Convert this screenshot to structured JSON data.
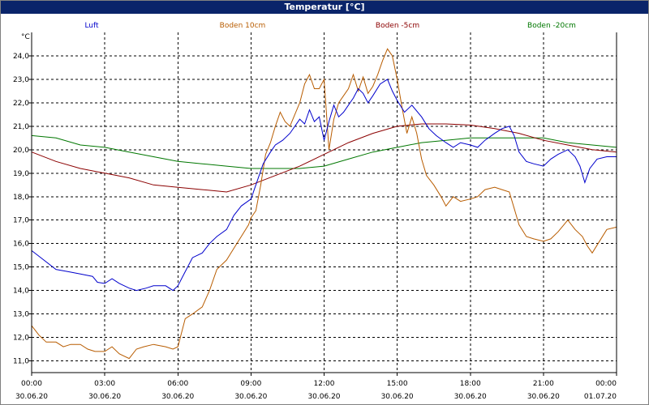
{
  "window": {
    "title": "Temperatur [°C]"
  },
  "chart_data": {
    "type": "line",
    "title": "Temperatur [°C]",
    "ylabel": "°C",
    "xlim": [
      "2020-06-30 00:00",
      "2020-07-01 00:00"
    ],
    "ylim": [
      10.5,
      25.0
    ],
    "grid": true,
    "legend_placement": "top",
    "y_ticks": [
      "11,0",
      "12,0",
      "13,0",
      "14,0",
      "15,0",
      "16,0",
      "17,0",
      "18,0",
      "19,0",
      "20,0",
      "21,0",
      "22,0",
      "23,0",
      "24,0"
    ],
    "x_ticks": [
      {
        "time": "00:00",
        "date": "30.06.20",
        "x": 0
      },
      {
        "time": "03:00",
        "date": "30.06.20",
        "x": 3
      },
      {
        "time": "06:00",
        "date": "30.06.20",
        "x": 6
      },
      {
        "time": "09:00",
        "date": "30.06.20",
        "x": 9
      },
      {
        "time": "12:00",
        "date": "30.06.20",
        "x": 12
      },
      {
        "time": "15:00",
        "date": "30.06.20",
        "x": 15
      },
      {
        "time": "18:00",
        "date": "30.06.20",
        "x": 18
      },
      {
        "time": "21:00",
        "date": "30.06.20",
        "x": 21
      },
      {
        "time": "00:00",
        "date": "01.07.20",
        "x": 24
      }
    ],
    "x_unit": "hours since 30.06.20 00:00",
    "series": [
      {
        "name": "Luft",
        "color": "#0000cc",
        "points": [
          [
            0,
            15.7
          ],
          [
            0.5,
            15.3
          ],
          [
            1,
            14.9
          ],
          [
            1.5,
            14.8
          ],
          [
            2,
            14.7
          ],
          [
            2.5,
            14.6
          ],
          [
            2.7,
            14.35
          ],
          [
            3,
            14.3
          ],
          [
            3.3,
            14.5
          ],
          [
            3.6,
            14.3
          ],
          [
            4,
            14.1
          ],
          [
            4.3,
            14.0
          ],
          [
            4.7,
            14.1
          ],
          [
            5,
            14.2
          ],
          [
            5.5,
            14.2
          ],
          [
            5.8,
            14.0
          ],
          [
            6,
            14.2
          ],
          [
            6.3,
            14.8
          ],
          [
            6.6,
            15.4
          ],
          [
            7,
            15.6
          ],
          [
            7.3,
            16.0
          ],
          [
            7.6,
            16.3
          ],
          [
            8,
            16.6
          ],
          [
            8.3,
            17.2
          ],
          [
            8.6,
            17.6
          ],
          [
            9,
            17.9
          ],
          [
            9.3,
            18.8
          ],
          [
            9.5,
            19.4
          ],
          [
            9.8,
            19.9
          ],
          [
            10,
            20.2
          ],
          [
            10.3,
            20.4
          ],
          [
            10.6,
            20.7
          ],
          [
            11,
            21.3
          ],
          [
            11.2,
            21.1
          ],
          [
            11.4,
            21.7
          ],
          [
            11.6,
            21.2
          ],
          [
            11.8,
            21.4
          ],
          [
            12,
            20.4
          ],
          [
            12.2,
            21.2
          ],
          [
            12.4,
            21.9
          ],
          [
            12.6,
            21.4
          ],
          [
            12.8,
            21.6
          ],
          [
            13,
            21.9
          ],
          [
            13.2,
            22.2
          ],
          [
            13.4,
            22.6
          ],
          [
            13.6,
            22.4
          ],
          [
            13.8,
            22.0
          ],
          [
            14,
            22.3
          ],
          [
            14.3,
            22.8
          ],
          [
            14.6,
            23.0
          ],
          [
            14.8,
            22.5
          ],
          [
            15,
            22.1
          ],
          [
            15.3,
            21.6
          ],
          [
            15.6,
            21.9
          ],
          [
            16,
            21.4
          ],
          [
            16.3,
            20.9
          ],
          [
            16.6,
            20.6
          ],
          [
            17,
            20.3
          ],
          [
            17.3,
            20.1
          ],
          [
            17.6,
            20.3
          ],
          [
            18,
            20.2
          ],
          [
            18.3,
            20.1
          ],
          [
            18.6,
            20.4
          ],
          [
            19,
            20.7
          ],
          [
            19.3,
            20.9
          ],
          [
            19.6,
            21.0
          ],
          [
            19.8,
            20.6
          ],
          [
            20,
            19.9
          ],
          [
            20.3,
            19.5
          ],
          [
            20.6,
            19.4
          ],
          [
            21,
            19.3
          ],
          [
            21.3,
            19.6
          ],
          [
            21.6,
            19.8
          ],
          [
            22,
            20.0
          ],
          [
            22.3,
            19.7
          ],
          [
            22.5,
            19.3
          ],
          [
            22.7,
            18.6
          ],
          [
            22.9,
            19.2
          ],
          [
            23.2,
            19.6
          ],
          [
            23.6,
            19.7
          ],
          [
            24,
            19.7
          ]
        ]
      },
      {
        "name": "Boden 10cm",
        "color": "#b85c00",
        "points": [
          [
            0,
            12.5
          ],
          [
            0.3,
            12.1
          ],
          [
            0.6,
            11.8
          ],
          [
            1,
            11.8
          ],
          [
            1.3,
            11.6
          ],
          [
            1.6,
            11.7
          ],
          [
            2,
            11.7
          ],
          [
            2.3,
            11.5
          ],
          [
            2.6,
            11.4
          ],
          [
            3,
            11.4
          ],
          [
            3.3,
            11.6
          ],
          [
            3.6,
            11.3
          ],
          [
            4,
            11.1
          ],
          [
            4.3,
            11.5
          ],
          [
            4.6,
            11.6
          ],
          [
            5,
            11.7
          ],
          [
            5.5,
            11.6
          ],
          [
            5.8,
            11.5
          ],
          [
            6,
            11.6
          ],
          [
            6.3,
            12.8
          ],
          [
            6.6,
            13.0
          ],
          [
            7,
            13.3
          ],
          [
            7.3,
            14.0
          ],
          [
            7.6,
            14.9
          ],
          [
            8,
            15.3
          ],
          [
            8.3,
            15.8
          ],
          [
            8.6,
            16.3
          ],
          [
            8.9,
            16.8
          ],
          [
            9,
            17.1
          ],
          [
            9.2,
            17.4
          ],
          [
            9.4,
            18.5
          ],
          [
            9.6,
            19.8
          ],
          [
            9.8,
            20.3
          ],
          [
            10,
            21.0
          ],
          [
            10.2,
            21.6
          ],
          [
            10.4,
            21.2
          ],
          [
            10.6,
            21.0
          ],
          [
            10.8,
            21.5
          ],
          [
            11,
            22.0
          ],
          [
            11.2,
            22.8
          ],
          [
            11.4,
            23.2
          ],
          [
            11.6,
            22.6
          ],
          [
            11.8,
            22.6
          ],
          [
            12,
            23.0
          ],
          [
            12.2,
            20.0
          ],
          [
            12.4,
            21.3
          ],
          [
            12.6,
            22.0
          ],
          [
            12.8,
            22.3
          ],
          [
            13,
            22.6
          ],
          [
            13.2,
            23.2
          ],
          [
            13.4,
            22.5
          ],
          [
            13.6,
            23.1
          ],
          [
            13.8,
            22.4
          ],
          [
            14,
            22.7
          ],
          [
            14.2,
            23.2
          ],
          [
            14.4,
            23.8
          ],
          [
            14.6,
            24.3
          ],
          [
            14.8,
            24.0
          ],
          [
            15,
            23.0
          ],
          [
            15.2,
            21.8
          ],
          [
            15.4,
            20.7
          ],
          [
            15.6,
            21.4
          ],
          [
            15.8,
            20.7
          ],
          [
            16,
            19.6
          ],
          [
            16.2,
            18.9
          ],
          [
            16.5,
            18.5
          ],
          [
            16.8,
            18.0
          ],
          [
            17,
            17.6
          ],
          [
            17.3,
            18.0
          ],
          [
            17.6,
            17.8
          ],
          [
            18,
            17.9
          ],
          [
            18.3,
            18.0
          ],
          [
            18.6,
            18.3
          ],
          [
            19,
            18.4
          ],
          [
            19.3,
            18.3
          ],
          [
            19.6,
            18.2
          ],
          [
            19.8,
            17.5
          ],
          [
            20,
            16.8
          ],
          [
            20.3,
            16.3
          ],
          [
            20.6,
            16.2
          ],
          [
            21,
            16.1
          ],
          [
            21.3,
            16.2
          ],
          [
            21.6,
            16.5
          ],
          [
            22,
            17.0
          ],
          [
            22.3,
            16.6
          ],
          [
            22.6,
            16.3
          ],
          [
            22.8,
            15.9
          ],
          [
            23,
            15.6
          ],
          [
            23.3,
            16.1
          ],
          [
            23.6,
            16.6
          ],
          [
            24,
            16.7
          ]
        ]
      },
      {
        "name": "Boden -5cm",
        "color": "#8b0000",
        "points": [
          [
            0,
            19.9
          ],
          [
            1,
            19.5
          ],
          [
            2,
            19.2
          ],
          [
            3,
            19.0
          ],
          [
            4,
            18.8
          ],
          [
            5,
            18.5
          ],
          [
            6,
            18.4
          ],
          [
            7,
            18.3
          ],
          [
            7.5,
            18.25
          ],
          [
            8,
            18.2
          ],
          [
            9,
            18.5
          ],
          [
            10,
            18.9
          ],
          [
            11,
            19.3
          ],
          [
            12,
            19.8
          ],
          [
            13,
            20.3
          ],
          [
            14,
            20.7
          ],
          [
            15,
            21.0
          ],
          [
            16,
            21.1
          ],
          [
            17,
            21.1
          ],
          [
            18,
            21.05
          ],
          [
            19,
            20.9
          ],
          [
            20,
            20.7
          ],
          [
            21,
            20.4
          ],
          [
            22,
            20.2
          ],
          [
            23,
            20.0
          ],
          [
            24,
            19.9
          ]
        ]
      },
      {
        "name": "Boden -20cm",
        "color": "#007700",
        "points": [
          [
            0,
            20.6
          ],
          [
            1,
            20.5
          ],
          [
            2,
            20.2
          ],
          [
            3,
            20.1
          ],
          [
            4,
            19.9
          ],
          [
            5,
            19.7
          ],
          [
            6,
            19.5
          ],
          [
            7,
            19.4
          ],
          [
            8,
            19.3
          ],
          [
            9,
            19.2
          ],
          [
            10,
            19.2
          ],
          [
            11,
            19.2
          ],
          [
            12,
            19.3
          ],
          [
            13,
            19.6
          ],
          [
            14,
            19.9
          ],
          [
            15,
            20.1
          ],
          [
            16,
            20.3
          ],
          [
            17,
            20.4
          ],
          [
            18,
            20.5
          ],
          [
            19,
            20.5
          ],
          [
            20,
            20.5
          ],
          [
            21,
            20.5
          ],
          [
            22,
            20.3
          ],
          [
            23,
            20.2
          ],
          [
            24,
            20.1
          ]
        ]
      }
    ]
  }
}
